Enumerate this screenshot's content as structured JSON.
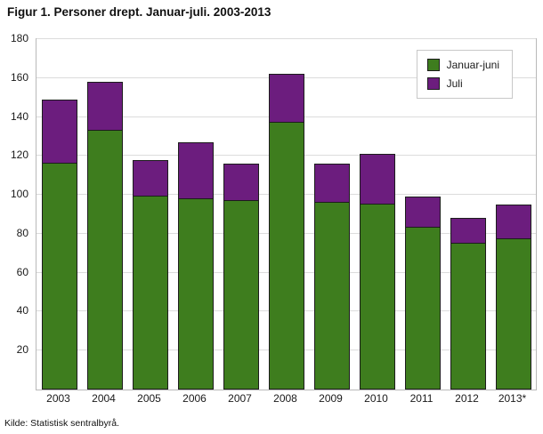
{
  "title": "Figur 1. Personer drept. Januar-juli. 2003-2013",
  "source": "Kilde: Statistisk sentralbyrå.",
  "chart_data": {
    "type": "bar",
    "stacked": true,
    "title": "Figur 1. Personer drept. Januar-juli. 2003-2013",
    "xlabel": "",
    "ylabel": "",
    "ylim": [
      0,
      180
    ],
    "y_ticks": [
      20,
      40,
      60,
      80,
      100,
      120,
      140,
      160,
      180
    ],
    "grid": true,
    "legend_position": "top-right",
    "categories": [
      "2003",
      "2004",
      "2005",
      "2006",
      "2007",
      "2008",
      "2009",
      "2010",
      "2011",
      "2012",
      "2013*"
    ],
    "series": [
      {
        "name": "Januar-juni",
        "color": "#3e7d1e",
        "values": [
          116,
          133,
          99,
          98,
          97,
          137,
          96,
          95,
          83,
          75,
          77
        ]
      },
      {
        "name": "Juli",
        "color": "#6c1d7e",
        "values": [
          33,
          25,
          19,
          29,
          19,
          25,
          20,
          26,
          16,
          13,
          18
        ]
      }
    ],
    "totals": [
      149,
      158,
      118,
      127,
      116,
      162,
      116,
      121,
      99,
      88,
      95
    ]
  }
}
